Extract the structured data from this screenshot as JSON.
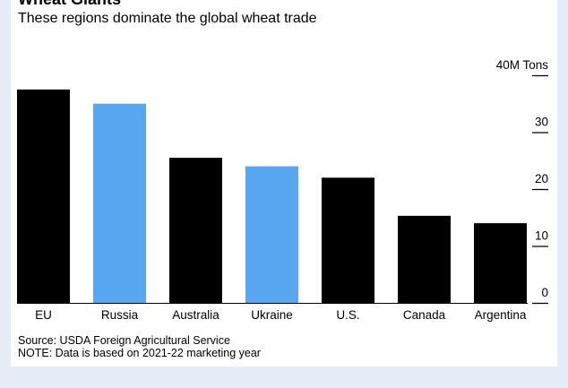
{
  "header": {
    "title": "Wheat Giants",
    "subtitle": "These regions dominate the global wheat trade"
  },
  "footer": {
    "source": "Source: USDA Foreign Agricultural Service",
    "note": "NOTE: Data is based on 2021-22 marketing year"
  },
  "colors": {
    "default_bar": "#000000",
    "highlight_bar": "#5aa7f1",
    "axis": "#000000"
  },
  "chart_data": {
    "type": "bar",
    "title": "Wheat Giants",
    "subtitle": "These regions dominate the global wheat trade",
    "categories": [
      "EU",
      "Russia",
      "Australia",
      "Ukraine",
      "U.S.",
      "Canada",
      "Argentina"
    ],
    "values": [
      37.5,
      35,
      25.5,
      24,
      22,
      15.3,
      14
    ],
    "highlighted": [
      "Russia",
      "Ukraine"
    ],
    "ylim": [
      0,
      40
    ],
    "yticks": [
      {
        "value": 0,
        "label": "0"
      },
      {
        "value": 10,
        "label": "10"
      },
      {
        "value": 20,
        "label": "20"
      },
      {
        "value": 30,
        "label": "30"
      },
      {
        "value": 40,
        "label": "40M Tons"
      }
    ],
    "y_axis_side": "right",
    "grid": false,
    "legend": "none"
  }
}
